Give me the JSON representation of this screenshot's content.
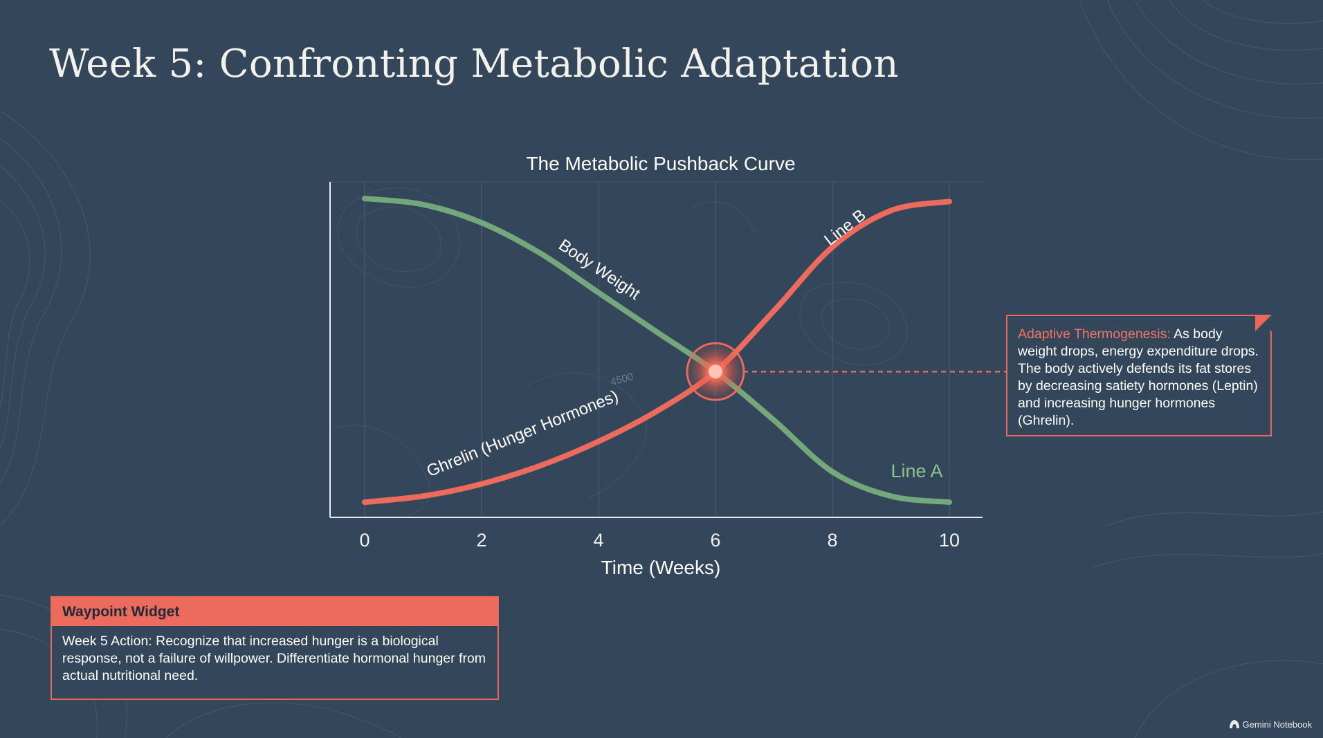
{
  "slide": {
    "title": "Week 5: Confronting Metabolic Adaptation"
  },
  "colors": {
    "background": "#34475a",
    "green_line": "#74a87c",
    "red_line": "#ec6b5d",
    "accent": "#e8685a"
  },
  "chart_data": {
    "type": "line",
    "title": "The Metabolic Pushback Curve",
    "xlabel": "Time (Weeks)",
    "ylabel": "",
    "xlim": [
      -0.6,
      10.6
    ],
    "ylim": [
      0,
      1.1
    ],
    "xticks": [
      0,
      2,
      4,
      6,
      8,
      10
    ],
    "grid": "vertical",
    "series": [
      {
        "name": "Body Weight",
        "end_label": "Line A",
        "color": "#74a87c",
        "x": [
          0,
          1,
          2,
          3,
          4,
          5,
          6,
          7,
          8,
          9,
          10
        ],
        "y": [
          1.05,
          1.03,
          0.97,
          0.87,
          0.74,
          0.61,
          0.48,
          0.32,
          0.15,
          0.07,
          0.05
        ]
      },
      {
        "name": "Ghrelin (Hunger Hormones)",
        "end_label": "Line B",
        "color": "#ec6b5d",
        "x": [
          0,
          1,
          2,
          3,
          4,
          5,
          6,
          7,
          8,
          9,
          10
        ],
        "y": [
          0.05,
          0.07,
          0.11,
          0.17,
          0.25,
          0.35,
          0.48,
          0.68,
          0.89,
          1.01,
          1.04
        ]
      }
    ],
    "annotations": [
      {
        "type": "intersection",
        "x": 6,
        "y": 0.48
      },
      {
        "type": "watermark",
        "text": "4500"
      }
    ]
  },
  "note": {
    "label": "Adaptive Thermogenesis:",
    "text": " As body weight drops, energy expenditure drops. The body actively defends its fat stores by decreasing satiety hormones (Leptin) and increasing hunger hormones (Ghrelin)."
  },
  "waypoint": {
    "header": "Waypoint Widget",
    "body": "Week 5 Action: Recognize that increased hunger is a biological response, not a failure of willpower. Differentiate hormonal hunger from actual nutritional need."
  },
  "brand": {
    "icon": "notebook-logo-icon",
    "label": "Gemini Notebook"
  }
}
